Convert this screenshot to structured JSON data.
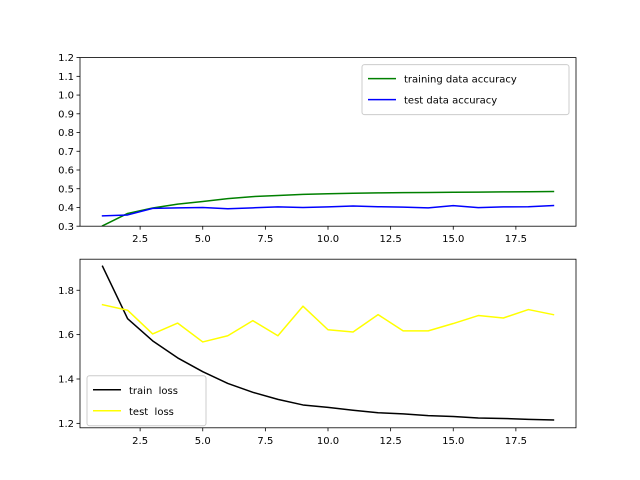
{
  "chart_data": [
    {
      "type": "line",
      "title": "",
      "xlabel": "",
      "ylabel": "",
      "xlim": [
        0.1,
        19.9
      ],
      "ylim": [
        0.3,
        1.2
      ],
      "x": [
        1,
        2,
        3,
        4,
        5,
        6,
        7,
        8,
        9,
        10,
        11,
        12,
        13,
        14,
        15,
        16,
        17,
        18,
        19
      ],
      "xticks": [
        2.5,
        5.0,
        7.5,
        10.0,
        12.5,
        15.0,
        17.5
      ],
      "xtick_labels": [
        "2.5",
        "5.0",
        "7.5",
        "10.0",
        "12.5",
        "15.0",
        "17.5"
      ],
      "yticks": [
        0.3,
        0.4,
        0.5,
        0.6,
        0.7,
        0.8,
        0.9,
        1.0,
        1.1,
        1.2
      ],
      "ytick_labels": [
        "0.3",
        "0.4",
        "0.5",
        "0.6",
        "0.7",
        "0.8",
        "0.9",
        "1.0",
        "1.1",
        "1.2"
      ],
      "legend_position": "top-right",
      "series": [
        {
          "name": "training data accuracy",
          "color": "#008000",
          "values": [
            0.302,
            0.368,
            0.397,
            0.418,
            0.432,
            0.447,
            0.458,
            0.464,
            0.47,
            0.473,
            0.476,
            0.478,
            0.479,
            0.48,
            0.481,
            0.482,
            0.483,
            0.484,
            0.485
          ]
        },
        {
          "name": "test data accuracy",
          "color": "#0000ff",
          "values": [
            0.355,
            0.36,
            0.395,
            0.398,
            0.4,
            0.393,
            0.398,
            0.403,
            0.4,
            0.403,
            0.408,
            0.404,
            0.402,
            0.398,
            0.41,
            0.399,
            0.403,
            0.404,
            0.41
          ]
        }
      ]
    },
    {
      "type": "line",
      "title": "",
      "xlabel": "",
      "ylabel": "",
      "xlim": [
        0.1,
        19.9
      ],
      "ylim": [
        1.18,
        1.94
      ],
      "x": [
        1,
        2,
        3,
        4,
        5,
        6,
        7,
        8,
        9,
        10,
        11,
        12,
        13,
        14,
        15,
        16,
        17,
        18,
        19
      ],
      "xticks": [
        2.5,
        5.0,
        7.5,
        10.0,
        12.5,
        15.0,
        17.5
      ],
      "xtick_labels": [
        "2.5",
        "5.0",
        "7.5",
        "10.0",
        "12.5",
        "15.0",
        "17.5"
      ],
      "yticks": [
        1.2,
        1.4,
        1.6,
        1.8
      ],
      "ytick_labels": [
        "1.2",
        "1.4",
        "1.6",
        "1.8"
      ],
      "legend_position": "bottom-left",
      "series": [
        {
          "name": "train  loss",
          "color": "#000000",
          "values": [
            1.908,
            1.672,
            1.572,
            1.495,
            1.433,
            1.38,
            1.34,
            1.308,
            1.283,
            1.272,
            1.259,
            1.248,
            1.243,
            1.235,
            1.231,
            1.224,
            1.222,
            1.218,
            1.215
          ]
        },
        {
          "name": "test  loss",
          "color": "#ffff00",
          "values": [
            1.735,
            1.71,
            1.603,
            1.652,
            1.567,
            1.595,
            1.663,
            1.595,
            1.728,
            1.622,
            1.612,
            1.69,
            1.617,
            1.617,
            1.65,
            1.686,
            1.675,
            1.713,
            1.69
          ]
        }
      ]
    }
  ]
}
